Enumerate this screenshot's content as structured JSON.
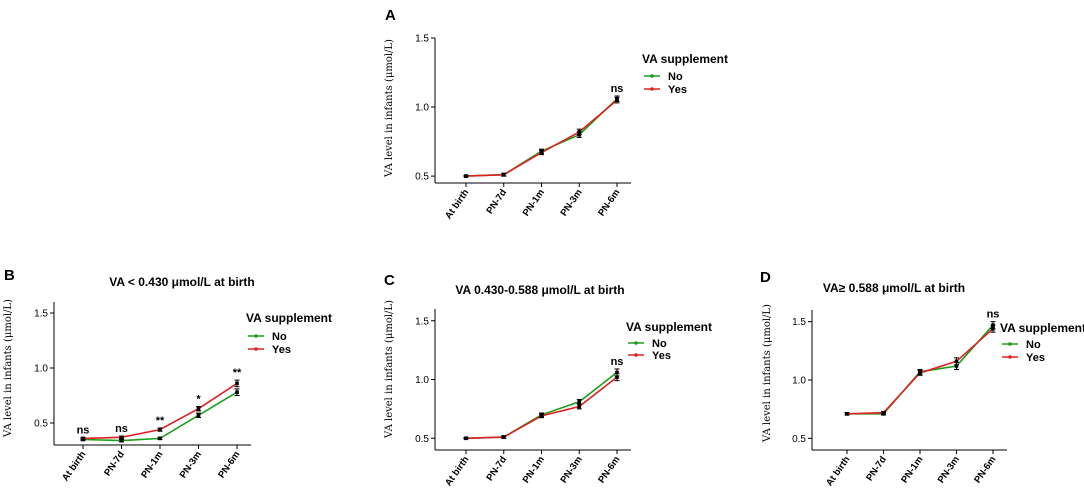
{
  "legend_title": "VA supplement",
  "chart_data": [
    {
      "panel": "A",
      "type": "line",
      "title": "",
      "ylabel": "VA level in infants (μmol/L)",
      "categories": [
        "At birth",
        "PN-7d",
        "PN-1m",
        "PN-3m",
        "PN-6m"
      ],
      "yticks": [
        "0.5",
        "1.0",
        "1.5"
      ],
      "ylim": [
        0.45,
        1.5
      ],
      "series": [
        {
          "name": "No",
          "color": "#1a9e1a",
          "values": [
            0.5,
            0.51,
            0.68,
            0.8,
            1.06
          ],
          "errors": [
            0.005,
            0.01,
            0.015,
            0.02,
            0.02
          ]
        },
        {
          "name": "Yes",
          "color": "#e02020",
          "values": [
            0.5,
            0.51,
            0.67,
            0.82,
            1.05
          ],
          "errors": [
            0.005,
            0.01,
            0.015,
            0.02,
            0.02
          ]
        }
      ],
      "annotations": [
        "",
        "",
        "",
        "",
        "ns"
      ]
    },
    {
      "panel": "B",
      "type": "line",
      "title": "VA < 0.430 μmol/L at birth",
      "ylabel": "VA level in infants (μmol/L)",
      "categories": [
        "At birth",
        "PN-7d",
        "PN-1m",
        "PN-3m",
        "PN-6m"
      ],
      "yticks": [
        "0.5",
        "1.0",
        "1.5"
      ],
      "ylim": [
        0.3,
        1.6
      ],
      "series": [
        {
          "name": "No",
          "color": "#1a9e1a",
          "values": [
            0.35,
            0.34,
            0.36,
            0.57,
            0.78
          ],
          "errors": [
            0.01,
            0.01,
            0.01,
            0.02,
            0.03
          ]
        },
        {
          "name": "Yes",
          "color": "#e02020",
          "values": [
            0.36,
            0.37,
            0.44,
            0.63,
            0.86
          ],
          "errors": [
            0.01,
            0.01,
            0.015,
            0.02,
            0.03
          ]
        }
      ],
      "annotations": [
        "ns",
        "ns",
        "**",
        "*",
        "**"
      ]
    },
    {
      "panel": "C",
      "type": "line",
      "title": "VA 0.430-0.588 μmol/L at birth",
      "ylabel": "VA level in infants (μmol/L)",
      "categories": [
        "At birth",
        "PN-7d",
        "PN-1m",
        "PN-3m",
        "PN-6m"
      ],
      "yticks": [
        "0.5",
        "1.0",
        "1.5"
      ],
      "ylim": [
        0.4,
        1.6
      ],
      "series": [
        {
          "name": "No",
          "color": "#1a9e1a",
          "values": [
            0.5,
            0.51,
            0.7,
            0.81,
            1.06
          ],
          "errors": [
            0.005,
            0.01,
            0.015,
            0.02,
            0.03
          ]
        },
        {
          "name": "Yes",
          "color": "#e02020",
          "values": [
            0.5,
            0.51,
            0.69,
            0.77,
            1.02
          ],
          "errors": [
            0.005,
            0.01,
            0.015,
            0.02,
            0.03
          ]
        }
      ],
      "annotations": [
        "",
        "",
        "",
        "",
        "ns"
      ]
    },
    {
      "panel": "D",
      "type": "line",
      "title": "VA≥ 0.588 μmol/L at birth",
      "ylabel": "VA level in infants (μmol/L)",
      "categories": [
        "At birth",
        "PN-7d",
        "PN-1m",
        "PN-3m",
        "PN-6m"
      ],
      "yticks": [
        "0.5",
        "1.0",
        "1.5"
      ],
      "ylim": [
        0.4,
        1.6
      ],
      "series": [
        {
          "name": "No",
          "color": "#1a9e1a",
          "values": [
            0.71,
            0.71,
            1.07,
            1.12,
            1.47
          ],
          "errors": [
            0.01,
            0.01,
            0.02,
            0.03,
            0.03
          ]
        },
        {
          "name": "Yes",
          "color": "#e02020",
          "values": [
            0.71,
            0.72,
            1.06,
            1.16,
            1.44
          ],
          "errors": [
            0.01,
            0.01,
            0.02,
            0.03,
            0.03
          ]
        }
      ],
      "annotations": [
        "",
        "",
        "",
        "",
        "ns"
      ]
    }
  ]
}
